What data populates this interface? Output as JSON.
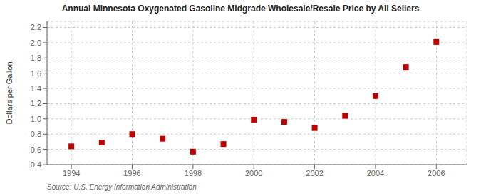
{
  "chart_data": {
    "type": "scatter",
    "title": "Annual Minnesota Oxygenated Gasoline Midgrade Wholesale/Resale Price by All Sellers",
    "y_label": "Dollars per Gallon",
    "annotations": [
      "Source: U.S. Energy Information Administration"
    ],
    "x": [
      1994,
      1995,
      1996,
      1997,
      1998,
      1999,
      2000,
      2001,
      2002,
      2003,
      2004,
      2005,
      2006
    ],
    "values": [
      0.64,
      0.69,
      0.8,
      0.74,
      0.57,
      0.67,
      0.99,
      0.96,
      0.88,
      1.04,
      1.3,
      1.68,
      2.01
    ],
    "xlim": [
      1993.2,
      2007.0
    ],
    "ylim": [
      0.4,
      2.28
    ],
    "xticks": [
      1994,
      1996,
      1998,
      2000,
      2002,
      2004,
      2006
    ],
    "yticks": [
      0.4,
      0.6,
      0.8,
      {
        "value": 1.0,
        "label": "1.0"
      },
      1.2,
      1.4,
      1.6,
      1.8,
      {
        "value": 2.0,
        "label": "2.0"
      },
      2.2
    ],
    "color": "#bb0000",
    "marker": "square",
    "grid": true
  }
}
